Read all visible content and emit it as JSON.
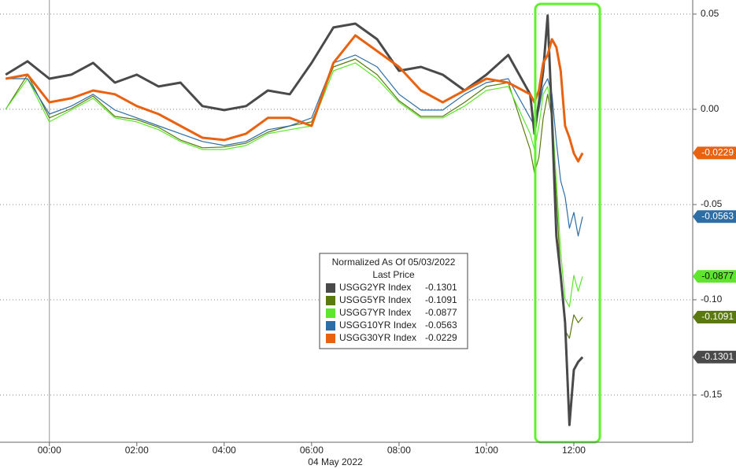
{
  "chart_data": {
    "type": "line",
    "legend_title": "Normalized As Of 05/03/2022",
    "legend_subtitle": "Last Price",
    "x_label": "04 May 2022",
    "x": [
      -1,
      -0.5,
      0,
      0.5,
      1,
      1.5,
      2,
      2.5,
      3,
      3.5,
      4,
      4.5,
      5,
      5.5,
      6,
      6.5,
      7,
      7.5,
      8,
      8.5,
      9,
      9.5,
      10,
      10.5,
      11,
      11.1,
      11.2,
      11.3,
      11.4,
      11.5,
      11.6,
      11.7,
      11.8,
      11.9,
      12,
      12.1,
      12.2
    ],
    "xlim": [
      -1.13,
      14.72
    ],
    "xticks": [
      {
        "value": 0,
        "label": "00:00"
      },
      {
        "value": 2,
        "label": "02:00"
      },
      {
        "value": 4,
        "label": "04:00"
      },
      {
        "value": 6,
        "label": "06:00"
      },
      {
        "value": 8,
        "label": "08:00"
      },
      {
        "value": 10,
        "label": "10:00"
      },
      {
        "value": 12,
        "label": "12:00"
      }
    ],
    "ylim": [
      -0.1748,
      0.0574
    ],
    "yticks": [
      0.05,
      {
        "value": 0,
        "label": "0.00"
      },
      -0.05,
      {
        "value": -0.1,
        "label": "-0.10"
      },
      -0.15
    ],
    "grid": true,
    "series": [
      {
        "name": "USGG2YR Index",
        "color": "#4a4a4a",
        "last_value": -0.1301,
        "values": [
          0.0182,
          0.0252,
          0.0161,
          0.0182,
          0.0244,
          0.014,
          0.0182,
          0.012,
          0.014,
          0.0017,
          -0.0004,
          0.0017,
          0.0099,
          0.0079,
          0.0244,
          0.043,
          0.045,
          0.0368,
          0.0202,
          0.0223,
          0.0182,
          0.0099,
          0.0182,
          0.0285,
          0.0079,
          -0.0128,
          0.0037,
          0.0202,
          0.0492,
          -0.0045,
          -0.0665,
          -0.0872,
          -0.112,
          -0.1657,
          -0.1368,
          -0.1326,
          -0.1301
        ]
      },
      {
        "name": "USGG5YR Index",
        "color": "#5a7a10",
        "last_value": -0.1091,
        "values": [
          0,
          0.0182,
          -0.0045,
          0.0004,
          0.007,
          -0.0037,
          -0.0054,
          -0.0095,
          -0.0161,
          -0.0202,
          -0.0198,
          -0.0178,
          -0.012,
          -0.0087,
          -0.0066,
          0.0223,
          0.0264,
          0.0182,
          0.0045,
          -0.0037,
          -0.0037,
          0.0037,
          0.012,
          0.014,
          -0.0211,
          -0.0335,
          -0.0252,
          -0.0045,
          0.0079,
          -0.0045,
          -0.0459,
          -0.0872,
          -0.1161,
          -0.1202,
          -0.1079,
          -0.112,
          -0.1091
        ]
      },
      {
        "name": "USGG7YR Index",
        "color": "#5ee62c",
        "last_value": -0.0877,
        "values": [
          0,
          0.0161,
          -0.0066,
          -0.0004,
          0.0058,
          -0.0045,
          -0.0066,
          -0.0107,
          -0.0169,
          -0.0211,
          -0.0211,
          -0.019,
          -0.0128,
          -0.0107,
          -0.0087,
          0.0202,
          0.0244,
          0.0161,
          0.0037,
          -0.0045,
          -0.0045,
          0.0017,
          0.0099,
          0.012,
          -0.0128,
          -0.0211,
          -0.0087,
          0.0079,
          0.012,
          -0.0004,
          -0.0376,
          -0.0748,
          -0.0996,
          -0.1037,
          -0.0872,
          -0.0955,
          -0.0877
        ]
      },
      {
        "name": "USGG10YR Index",
        "color": "#2e6ea6",
        "last_value": -0.0563,
        "values": [
          0.0161,
          0.0161,
          -0.0025,
          0.0017,
          0.0079,
          -0.0004,
          -0.0045,
          -0.0087,
          -0.0128,
          -0.0169,
          -0.019,
          -0.0169,
          -0.0107,
          -0.0087,
          -0.0045,
          0.0244,
          0.0285,
          0.0223,
          0.0079,
          -0.0004,
          -0.0004,
          0.0079,
          0.014,
          0.0161,
          -0.0045,
          -0.0087,
          -0.0004,
          0.012,
          0.0161,
          0.0079,
          -0.0169,
          -0.0376,
          -0.0459,
          -0.0624,
          -0.0541,
          -0.0665,
          -0.0563
        ]
      },
      {
        "name": "USGG30YR Index",
        "color": "#e8620f",
        "last_value": -0.0229,
        "values": [
          0.0161,
          0.0182,
          0.0037,
          0.0058,
          0.0099,
          0.0079,
          0.0017,
          -0.0025,
          -0.0087,
          -0.0149,
          -0.0161,
          -0.0128,
          -0.0045,
          -0.0045,
          -0.0087,
          0.0244,
          0.0388,
          0.0306,
          0.0223,
          0.0099,
          0.0037,
          0.0099,
          0.0161,
          0.014,
          0.0079,
          0.0037,
          0.0099,
          0.0244,
          0.0285,
          0.0368,
          0.0326,
          0.0202,
          -0.0087,
          -0.0149,
          -0.0231,
          -0.0273,
          -0.0229
        ]
      }
    ]
  }
}
